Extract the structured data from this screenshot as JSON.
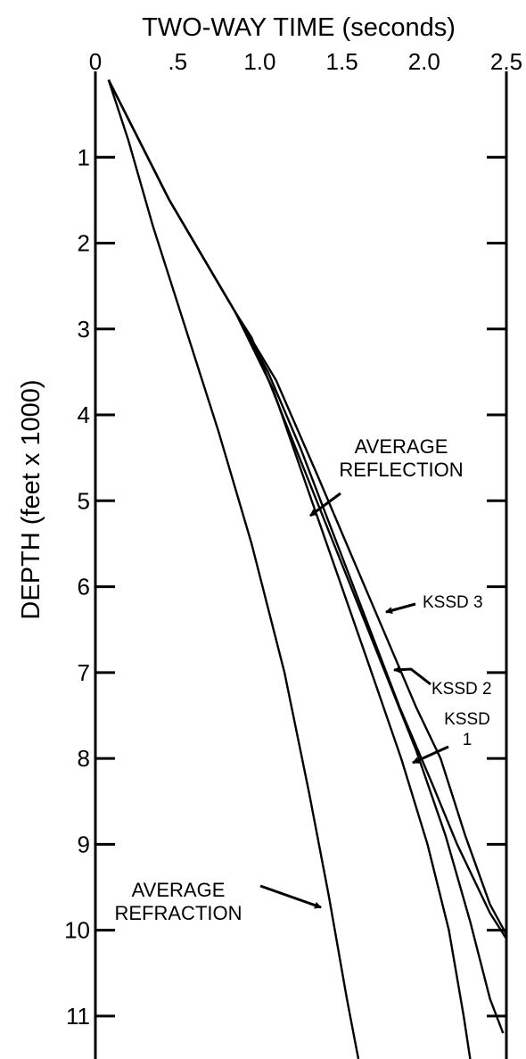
{
  "chart_data": {
    "type": "line",
    "xlabel": "TWO-WAY TIME (seconds)",
    "ylabel": "DEPTH (feet x 1000)",
    "xlim": [
      0,
      2.5
    ],
    "ylim": [
      0,
      11.5
    ],
    "y_inverted": true,
    "x_axis_position": "top",
    "grid": false,
    "x_ticks": [
      0,
      0.5,
      1.0,
      1.5,
      2.0,
      2.5
    ],
    "x_tick_labels": [
      "0",
      ".5",
      "1.0",
      "1.5",
      "2.0",
      "2.5"
    ],
    "y_ticks": [
      1,
      2,
      3,
      4,
      5,
      6,
      7,
      8,
      9,
      10,
      11
    ],
    "y_tick_labels": [
      "1",
      "2",
      "3",
      "4",
      "5",
      "6",
      "7",
      "8",
      "9",
      "10",
      "11"
    ],
    "series": [
      {
        "name": "AVERAGE REFRACTION",
        "points": [
          [
            0.08,
            0.1
          ],
          [
            0.2,
            0.8
          ],
          [
            0.35,
            1.8
          ],
          [
            0.55,
            3.0
          ],
          [
            0.75,
            4.2
          ],
          [
            0.95,
            5.5
          ],
          [
            1.15,
            7.0
          ],
          [
            1.3,
            8.4
          ],
          [
            1.42,
            9.6
          ],
          [
            1.53,
            10.8
          ],
          [
            1.6,
            11.5
          ]
        ]
      },
      {
        "name": "AVERAGE REFLECTION",
        "points": [
          [
            0.08,
            0.1
          ],
          [
            0.45,
            1.5
          ],
          [
            0.85,
            2.8
          ],
          [
            1.08,
            3.7
          ],
          [
            1.28,
            4.8
          ],
          [
            1.48,
            5.9
          ],
          [
            1.68,
            7.0
          ],
          [
            1.86,
            8.0
          ],
          [
            2.02,
            9.0
          ],
          [
            2.15,
            10.0
          ],
          [
            2.24,
            11.0
          ],
          [
            2.28,
            11.5
          ]
        ]
      },
      {
        "name": "KSSD 1",
        "points": [
          [
            0.08,
            0.1
          ],
          [
            0.45,
            1.5
          ],
          [
            0.85,
            2.8
          ],
          [
            0.95,
            3.1
          ],
          [
            1.2,
            4.3
          ],
          [
            1.45,
            5.5
          ],
          [
            1.7,
            6.7
          ],
          [
            1.95,
            7.9
          ],
          [
            2.13,
            8.9
          ],
          [
            2.28,
            9.9
          ],
          [
            2.4,
            10.8
          ],
          [
            2.48,
            11.2
          ]
        ]
      },
      {
        "name": "KSSD 2",
        "points": [
          [
            0.08,
            0.1
          ],
          [
            0.45,
            1.5
          ],
          [
            0.85,
            2.8
          ],
          [
            1.05,
            3.5
          ],
          [
            1.25,
            4.4
          ],
          [
            1.45,
            5.4
          ],
          [
            1.65,
            6.4
          ],
          [
            1.85,
            7.4
          ],
          [
            2.05,
            8.3
          ],
          [
            2.2,
            9.0
          ],
          [
            2.4,
            9.8
          ],
          [
            2.5,
            10.1
          ]
        ]
      },
      {
        "name": "KSSD 3",
        "points": [
          [
            0.08,
            0.1
          ],
          [
            0.45,
            1.5
          ],
          [
            0.85,
            2.8
          ],
          [
            1.1,
            3.6
          ],
          [
            1.35,
            4.7
          ],
          [
            1.55,
            5.6
          ],
          [
            1.75,
            6.5
          ],
          [
            1.95,
            7.4
          ],
          [
            2.1,
            8.0
          ],
          [
            2.25,
            8.9
          ],
          [
            2.4,
            9.7
          ],
          [
            2.5,
            10.05
          ]
        ]
      }
    ],
    "annotations": [
      {
        "id": "reflection",
        "lines": [
          "AVERAGE",
          "REFLECTION"
        ]
      },
      {
        "id": "refraction",
        "lines": [
          "AVERAGE",
          "REFRACTION"
        ]
      },
      {
        "id": "kssd3",
        "lines": [
          "KSSD 3"
        ]
      },
      {
        "id": "kssd2",
        "lines": [
          "KSSD 2"
        ]
      },
      {
        "id": "kssd1",
        "lines": [
          "KSSD",
          "1"
        ]
      }
    ]
  }
}
